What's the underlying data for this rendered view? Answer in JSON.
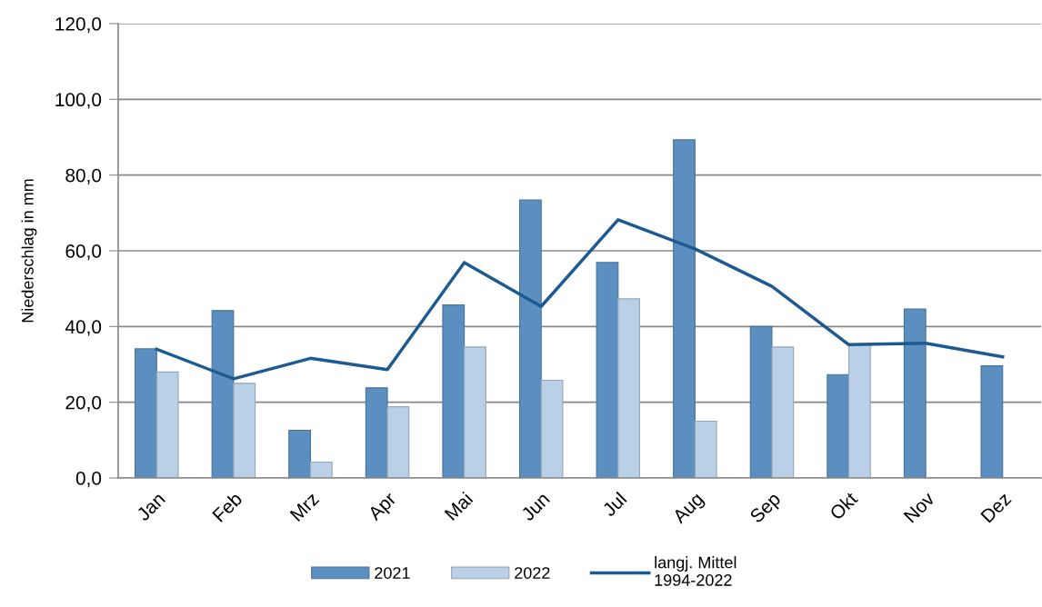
{
  "chart_data": {
    "type": "bar",
    "ylabel": "Niederschlag in mm",
    "categories": [
      "Jan",
      "Feb",
      "Mrz",
      "Apr",
      "Mai",
      "Jun",
      "Jul",
      "Aug",
      "Sep",
      "Okt",
      "Nov",
      "Dez"
    ],
    "series": [
      {
        "name": "2021",
        "color": "#5b8fc0",
        "values": [
          34.1,
          44.2,
          12.6,
          23.8,
          45.7,
          73.4,
          56.9,
          89.3,
          40.0,
          27.3,
          44.6,
          29.6
        ]
      },
      {
        "name": "2022",
        "color": "#b9d0e6",
        "values": [
          28.0,
          25.0,
          4.2,
          18.8,
          34.6,
          25.8,
          47.3,
          15.0,
          34.6,
          35.2,
          null,
          null
        ]
      },
      {
        "name": "langj. Mittel\n1994-2022",
        "type": "line",
        "color": "#1c5a91",
        "values": [
          34.0,
          26.2,
          31.6,
          28.6,
          56.9,
          45.3,
          68.2,
          60.5,
          50.6,
          35.2,
          35.6,
          32.0
        ]
      }
    ],
    "ylim": [
      0,
      120
    ],
    "yticks": [
      {
        "value": 0,
        "label": "0,0"
      },
      {
        "value": 20,
        "label": "20,0"
      },
      {
        "value": 40,
        "label": "40,0"
      },
      {
        "value": 60,
        "label": "60,0"
      },
      {
        "value": 80,
        "label": "80,0"
      },
      {
        "value": 100,
        "label": "100,0"
      },
      {
        "value": 120,
        "label": "120,0"
      }
    ],
    "grid": "y",
    "legend": "bottom",
    "line_style": "solid"
  }
}
